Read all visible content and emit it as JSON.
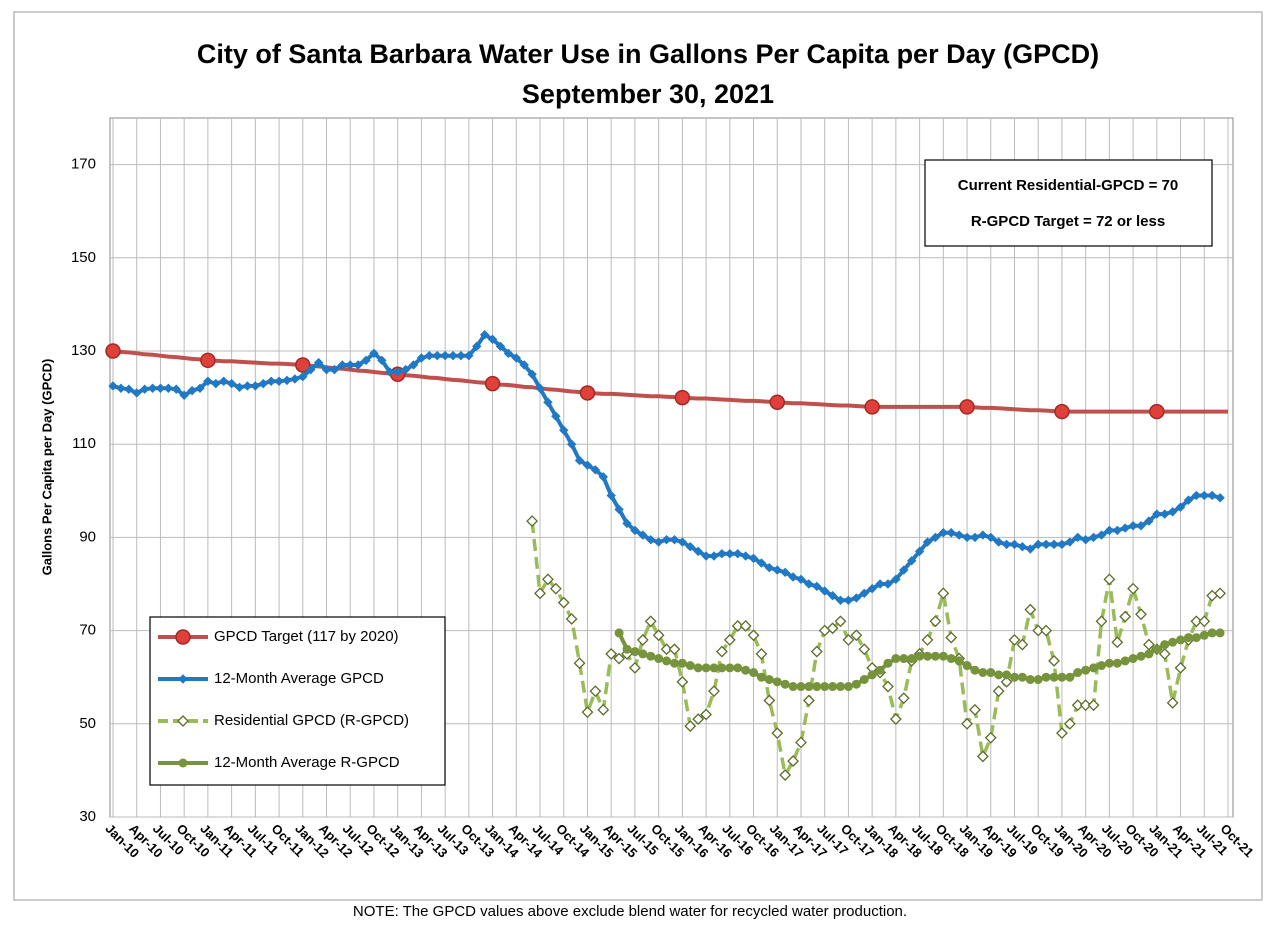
{
  "chart_data": {
    "type": "line",
    "title": "City of Santa Barbara Water Use in Gallons Per Capita per Day (GPCD)",
    "subtitle": "September 30, 2021",
    "y_label": "Gallons Per Capita per Day (GPCD)",
    "note": "NOTE: The GPCD values above exclude blend water for recycled water production.",
    "annotations": [
      "Current Residential-GPCD = 70",
      "R-GPCD Target = 72 or less"
    ],
    "legend": "lower left",
    "grid": true,
    "ylim": [
      30,
      180
    ],
    "yticks": [
      30,
      50,
      70,
      90,
      110,
      130,
      150,
      170
    ],
    "categories": [
      "Jan-10",
      null,
      null,
      "Apr-10",
      null,
      null,
      "Jul-10",
      null,
      null,
      "Oct-10",
      null,
      null,
      "Jan-11",
      null,
      null,
      "Apr-11",
      null,
      null,
      "Jul-11",
      null,
      null,
      "Oct-11",
      null,
      null,
      "Jan-12",
      null,
      null,
      "Apr-12",
      null,
      null,
      "Jul-12",
      null,
      null,
      "Oct-12",
      null,
      null,
      "Jan-13",
      null,
      null,
      "Apr-13",
      null,
      null,
      "Jul-13",
      null,
      null,
      "Oct-13",
      null,
      null,
      "Jan-14",
      null,
      null,
      "Apr-14",
      null,
      null,
      "Jul-14",
      null,
      null,
      "Oct-14",
      null,
      null,
      "Jan-15",
      null,
      null,
      "Apr-15",
      null,
      null,
      "Jul-15",
      null,
      null,
      "Oct-15",
      null,
      null,
      "Jan-16",
      null,
      null,
      "Apr-16",
      null,
      null,
      "Jul-16",
      null,
      null,
      "Oct-16",
      null,
      null,
      "Jan-17",
      null,
      null,
      "Apr-17",
      null,
      null,
      "Jul-17",
      null,
      null,
      "Oct-17",
      null,
      null,
      "Jan-18",
      null,
      null,
      "Apr-18",
      null,
      null,
      "Jul-18",
      null,
      null,
      "Oct-18",
      null,
      null,
      "Jan-19",
      null,
      null,
      "Apr-19",
      null,
      null,
      "Jul-19",
      null,
      null,
      "Oct-19",
      null,
      null,
      "Jan-20",
      null,
      null,
      "Apr-20",
      null,
      null,
      "Jul-20",
      null,
      null,
      "Oct-20",
      null,
      null,
      "Jan-21",
      null,
      null,
      "Apr-21",
      null,
      null,
      "Jul-21",
      null,
      null,
      "Oct-21"
    ],
    "series": [
      {
        "name": "GPCD Target (117 by 2020)",
        "color": "#c0504d",
        "marker": "circle",
        "marker_step": 12,
        "dash": false,
        "values": [
          130,
          129.8,
          129.7,
          129.5,
          129.3,
          129.2,
          129,
          128.8,
          128.7,
          128.5,
          128.3,
          128.2,
          128,
          127.9,
          127.8,
          127.8,
          127.7,
          127.6,
          127.5,
          127.4,
          127.3,
          127.3,
          127.2,
          127.1,
          127,
          126.8,
          126.7,
          126.5,
          126.3,
          126.2,
          126,
          125.8,
          125.7,
          125.5,
          125.3,
          125.2,
          125,
          124.8,
          124.7,
          124.5,
          124.3,
          124.2,
          124,
          123.8,
          123.7,
          123.5,
          123.3,
          123.2,
          123,
          122.8,
          122.7,
          122.5,
          122.3,
          122.2,
          122,
          121.8,
          121.7,
          121.5,
          121.3,
          121.2,
          121,
          120.9,
          120.8,
          120.8,
          120.7,
          120.6,
          120.5,
          120.4,
          120.3,
          120.3,
          120.2,
          120.1,
          120,
          119.9,
          119.8,
          119.8,
          119.7,
          119.6,
          119.5,
          119.4,
          119.3,
          119.3,
          119.2,
          119.1,
          119,
          118.9,
          118.8,
          118.8,
          118.7,
          118.6,
          118.5,
          118.4,
          118.3,
          118.3,
          118.2,
          118.1,
          118,
          118,
          118,
          118,
          118,
          118,
          118,
          118,
          118,
          118,
          118,
          118,
          118,
          117.9,
          117.8,
          117.8,
          117.7,
          117.6,
          117.5,
          117.4,
          117.3,
          117.3,
          117.2,
          117.1,
          117,
          117,
          117,
          117,
          117,
          117,
          117,
          117,
          117,
          117,
          117,
          117,
          117,
          117,
          117,
          117,
          117,
          117,
          117,
          117,
          117,
          117
        ]
      },
      {
        "name": "12-Month Average GPCD",
        "color": "#2179c4",
        "marker": "diamond",
        "marker_step": 1,
        "dash": false,
        "values": [
          122.5,
          122,
          121.8,
          121,
          121.8,
          122,
          122,
          122,
          121.8,
          120.5,
          121.5,
          122,
          123.5,
          123,
          123.5,
          123,
          122.2,
          122.5,
          122.5,
          123,
          123.5,
          123.5,
          123.7,
          124,
          124.5,
          126,
          127.5,
          126,
          126,
          127,
          127,
          127,
          128,
          129.5,
          128,
          125.5,
          125.5,
          126,
          127,
          128.5,
          129,
          129,
          129,
          129,
          129,
          129,
          131,
          133.5,
          132.5,
          131,
          129.5,
          128.5,
          127,
          125,
          122,
          119,
          116,
          113,
          110,
          106.5,
          105.5,
          104.5,
          103,
          99,
          96,
          93,
          91.5,
          90.5,
          89.5,
          89,
          89.5,
          89.5,
          89,
          88,
          87,
          86,
          86,
          86.5,
          86.5,
          86.5,
          86,
          85.5,
          84.5,
          83.5,
          83,
          82.5,
          81.5,
          81,
          80,
          79.5,
          78.5,
          77.5,
          76.5,
          76.5,
          77,
          78,
          79,
          80,
          80,
          81,
          83,
          85,
          87,
          89,
          90,
          91,
          91,
          90.5,
          90,
          90,
          90.5,
          90,
          89,
          88.5,
          88.5,
          88,
          87.5,
          88.5,
          88.5,
          88.5,
          88.5,
          89,
          90,
          89.5,
          90,
          90.5,
          91.5,
          91.5,
          92,
          92.5,
          92.5,
          93.5,
          95,
          95,
          95.5,
          96.5,
          98,
          99,
          99,
          99,
          98.5,
          null
        ]
      },
      {
        "name": "Residential GPCD (R-GPCD)",
        "color": "#9bbb59",
        "marker": "diamond-open",
        "marker_step": 1,
        "dash": true,
        "values": [
          null,
          null,
          null,
          null,
          null,
          null,
          null,
          null,
          null,
          null,
          null,
          null,
          null,
          null,
          null,
          null,
          null,
          null,
          null,
          null,
          null,
          null,
          null,
          null,
          null,
          null,
          null,
          null,
          null,
          null,
          null,
          null,
          null,
          null,
          null,
          null,
          null,
          null,
          null,
          null,
          null,
          null,
          null,
          null,
          null,
          null,
          null,
          null,
          null,
          null,
          null,
          null,
          null,
          93.5,
          78,
          81,
          79,
          76,
          72.5,
          63,
          52.5,
          57,
          53,
          65,
          64,
          65,
          62,
          68,
          72,
          69,
          66,
          66,
          59,
          49.5,
          51,
          52,
          57,
          65.5,
          68,
          71,
          71,
          69,
          65,
          55,
          48,
          39,
          42,
          46,
          55,
          65.5,
          70,
          70.5,
          72,
          68,
          69,
          66,
          62,
          61,
          58,
          51,
          55.5,
          63.5,
          65,
          68,
          72,
          78,
          68.5,
          64,
          50,
          53,
          43,
          47,
          57,
          59,
          68,
          67,
          74.5,
          70,
          70,
          63.5,
          48,
          50,
          54,
          54,
          54,
          72,
          81,
          67.5,
          73,
          79,
          73.5,
          67,
          66,
          65,
          54.5,
          62,
          68,
          72,
          72,
          77.5,
          78,
          null
        ]
      },
      {
        "name": "12-Month Average R-GPCD",
        "color": "#77933c",
        "marker": "circle-small",
        "marker_step": 1,
        "dash": false,
        "values": [
          null,
          null,
          null,
          null,
          null,
          null,
          null,
          null,
          null,
          null,
          null,
          null,
          null,
          null,
          null,
          null,
          null,
          null,
          null,
          null,
          null,
          null,
          null,
          null,
          null,
          null,
          null,
          null,
          null,
          null,
          null,
          null,
          null,
          null,
          null,
          null,
          null,
          null,
          null,
          null,
          null,
          null,
          null,
          null,
          null,
          null,
          null,
          null,
          null,
          null,
          null,
          null,
          null,
          null,
          null,
          null,
          null,
          null,
          null,
          null,
          null,
          null,
          null,
          null,
          69.5,
          66,
          65.5,
          65,
          64.5,
          64,
          63.5,
          63,
          63,
          62.5,
          62,
          62,
          62,
          62,
          62,
          62,
          61.5,
          61,
          60,
          59.5,
          59,
          58.5,
          58,
          58,
          58,
          58,
          58,
          58,
          58,
          58,
          58.5,
          59.5,
          60.5,
          61.5,
          63,
          64,
          64,
          64,
          64.5,
          64.5,
          64.5,
          64.5,
          64,
          63.5,
          62.5,
          61.5,
          61,
          61,
          60.5,
          60.5,
          60,
          60,
          59.5,
          59.5,
          60,
          60,
          60,
          60,
          61,
          61.5,
          62,
          62.5,
          63,
          63,
          63.5,
          64,
          64.5,
          65,
          66,
          67,
          67.5,
          68,
          68.5,
          68.5,
          69,
          69.5,
          69.5,
          null
        ]
      }
    ]
  }
}
